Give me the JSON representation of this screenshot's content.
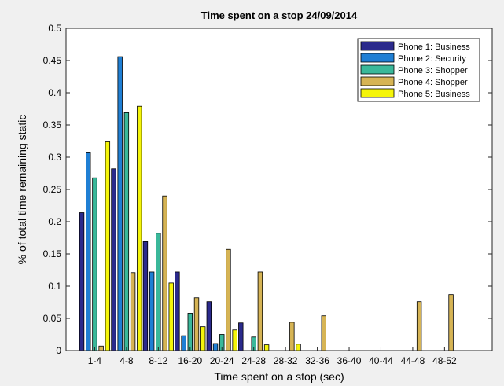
{
  "chart_data": {
    "type": "bar",
    "title": "Time spent on a stop 24/09/2014",
    "xlabel": "Time spent on a stop (sec)",
    "ylabel": "% of total time remaining static",
    "ylim": [
      0,
      0.5
    ],
    "yticks": [
      "0",
      "0.05",
      "0.1",
      "0.15",
      "0.2",
      "0.25",
      "0.3",
      "0.35",
      "0.4",
      "0.45",
      "0.5"
    ],
    "categories": [
      "1-4",
      "4-8",
      "8-12",
      "16-20",
      "20-24",
      "24-28",
      "28-32",
      "32-36",
      "36-40",
      "40-44",
      "44-48",
      "48-52"
    ],
    "grid": false,
    "legend_position": "top-right",
    "series": [
      {
        "name": "Phone 1: Business",
        "color": "#2b2a8c",
        "values": [
          0.214,
          0.282,
          0.169,
          0.122,
          0.076,
          0.043,
          0,
          0,
          0,
          0,
          0,
          0
        ]
      },
      {
        "name": "Phone 2: Security",
        "color": "#1f7fd4",
        "values": [
          0.308,
          0.456,
          0.122,
          0.023,
          0.011,
          0,
          0,
          0,
          0,
          0,
          0,
          0
        ]
      },
      {
        "name": "Phone 3: Shopper",
        "color": "#3ab89a",
        "values": [
          0.268,
          0.369,
          0.182,
          0.058,
          0.025,
          0.021,
          0,
          0,
          0,
          0,
          0,
          0
        ]
      },
      {
        "name": "Phone 4: Shopper",
        "color": "#d6b455",
        "values": [
          0.007,
          0.121,
          0.24,
          0.082,
          0.157,
          0.122,
          0.044,
          0.054,
          0,
          0,
          0.076,
          0.087
        ]
      },
      {
        "name": "Phone 5: Business",
        "color": "#f5f50a",
        "values": [
          0.325,
          0.379,
          0.105,
          0.037,
          0.032,
          0.009,
          0.01,
          0,
          0,
          0,
          0,
          0
        ]
      }
    ]
  }
}
